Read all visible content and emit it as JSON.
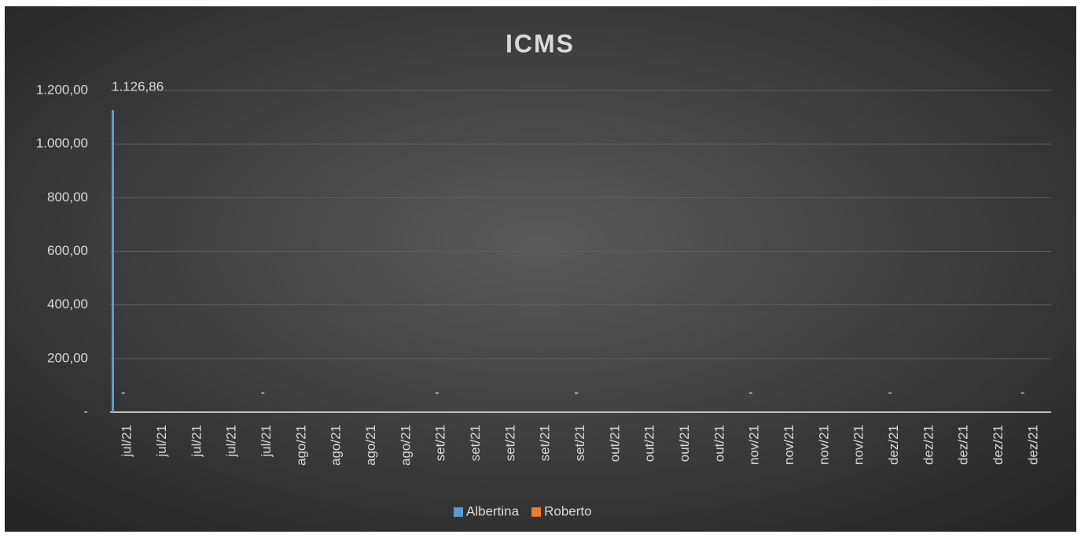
{
  "chart_data": {
    "type": "bar",
    "title": "ICMS",
    "categories": [
      "jul/21",
      "jul/21",
      "jul/21",
      "jul/21",
      "jul/21",
      "ago/21",
      "ago/21",
      "ago/21",
      "ago/21",
      "set/21",
      "set/21",
      "set/21",
      "set/21",
      "set/21",
      "out/21",
      "out/21",
      "out/21",
      "out/21",
      "nov/21",
      "nov/21",
      "nov/21",
      "nov/21",
      "dez/21",
      "dez/21",
      "dez/21",
      "dez/21",
      "dez/21"
    ],
    "series": [
      {
        "name": "Albertina",
        "color": "#5b9bd5",
        "values": [
          1126.86,
          0,
          0,
          0,
          0,
          0,
          0,
          0,
          0,
          0,
          0,
          0,
          0,
          0,
          0,
          0,
          0,
          0,
          0,
          0,
          0,
          0,
          0,
          0,
          0,
          0,
          0
        ],
        "value_labels": [
          "1.126,86",
          null,
          null,
          null,
          null,
          null,
          null,
          null,
          null,
          null,
          null,
          null,
          null,
          null,
          null,
          null,
          null,
          null,
          null,
          null,
          null,
          null,
          null,
          null,
          null,
          null,
          null
        ]
      },
      {
        "name": "Roberto",
        "color": "#ed7d31",
        "values": [
          0,
          0,
          0,
          0,
          0,
          0,
          0,
          0,
          0,
          0,
          0,
          0,
          0,
          0,
          0,
          0,
          0,
          0,
          0,
          0,
          0,
          0,
          0,
          0,
          0,
          0,
          0
        ],
        "value_labels": [
          "-",
          null,
          null,
          null,
          "-",
          null,
          null,
          null,
          null,
          "-",
          null,
          null,
          null,
          "-",
          null,
          null,
          null,
          null,
          "-",
          null,
          null,
          null,
          "-",
          null,
          null,
          null,
          "-"
        ]
      }
    ],
    "ylim": [
      0,
      1200
    ],
    "yticks": [
      {
        "value": 0,
        "label": "-"
      },
      {
        "value": 200,
        "label": "200,00"
      },
      {
        "value": 400,
        "label": "400,00"
      },
      {
        "value": 600,
        "label": "600,00"
      },
      {
        "value": 800,
        "label": "800,00"
      },
      {
        "value": 1000,
        "label": "1.000,00"
      },
      {
        "value": 1200,
        "label": "1.200,00"
      }
    ],
    "grid": true,
    "legend": "bottom"
  }
}
